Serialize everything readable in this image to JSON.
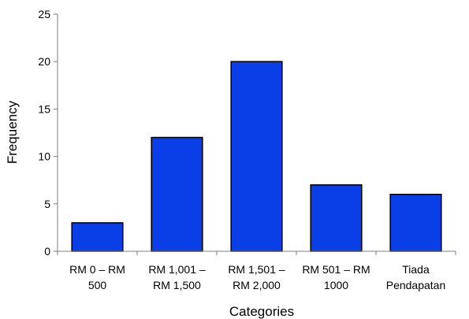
{
  "chart_data": {
    "type": "bar",
    "categories": [
      [
        "RM 0 – RM",
        "500"
      ],
      [
        "RM 1,001 –",
        "RM 1,500"
      ],
      [
        "RM 1,501 –",
        "RM 2,000"
      ],
      [
        "RM 501 – RM",
        "1000"
      ],
      [
        "Tiada",
        "Pendapatan"
      ]
    ],
    "values": [
      3,
      12,
      20,
      7,
      6
    ],
    "xlabel": "Categories",
    "ylabel": "Frequency",
    "ylim": [
      0,
      25
    ],
    "yticks": [
      0,
      5,
      10,
      15,
      20,
      25
    ],
    "grid": false,
    "legend": "none",
    "colors": {
      "bar_fill": "#0a3ee6",
      "bar_stroke": "#000000",
      "axis": "#7f7f7f"
    }
  }
}
